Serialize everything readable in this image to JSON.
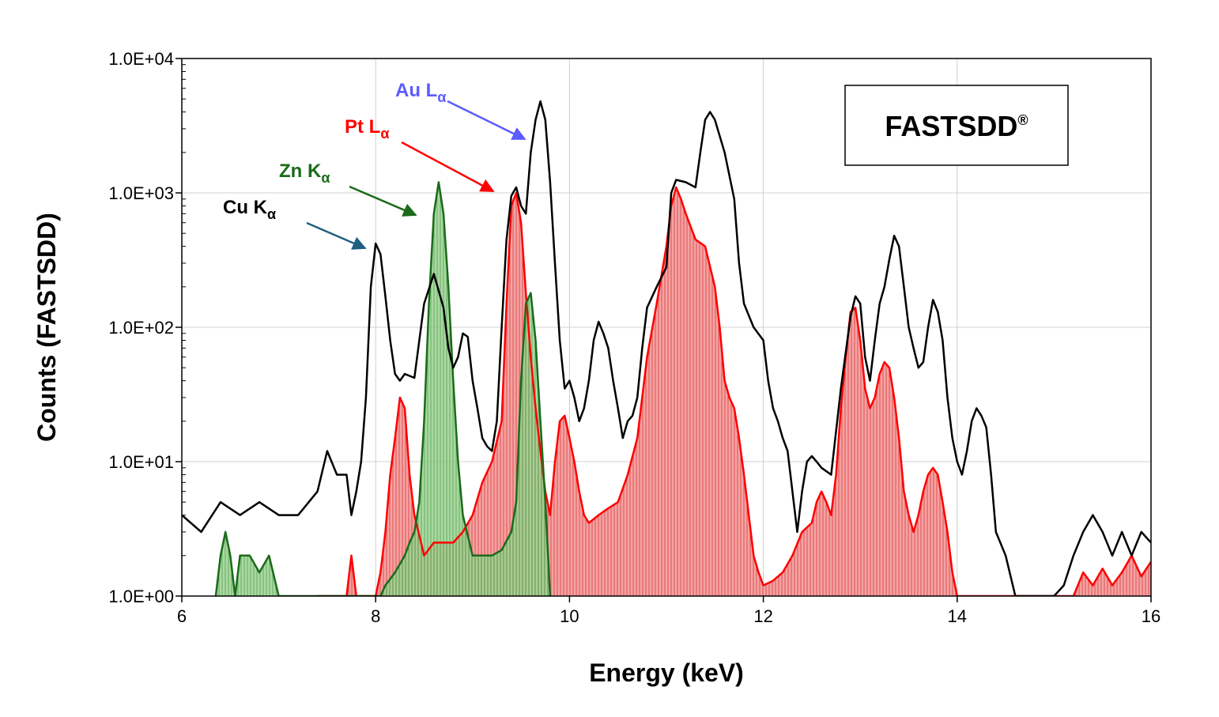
{
  "chart_data": {
    "type": "area",
    "title": "",
    "xlabel": "Energy (keV)",
    "ylabel": "Counts (FASTSDD)",
    "xlim": [
      6,
      16
    ],
    "ylim": [
      1,
      10000
    ],
    "yscale": "log",
    "grid": true,
    "x_ticks": [
      "6",
      "8",
      "10",
      "12",
      "14",
      "16"
    ],
    "y_ticks": [
      "1.0E+00",
      "1.0E+01",
      "1.0E+02",
      "1.0E+03",
      "1.0E+04"
    ],
    "badge": {
      "text": "FASTSDD",
      "mark": "®"
    },
    "series": [
      {
        "color": "#000000",
        "fill": "none",
        "points": [
          [
            6.0,
            4
          ],
          [
            6.2,
            3
          ],
          [
            6.4,
            5
          ],
          [
            6.6,
            4
          ],
          [
            6.8,
            5
          ],
          [
            7.0,
            4
          ],
          [
            7.2,
            4
          ],
          [
            7.4,
            6
          ],
          [
            7.5,
            12
          ],
          [
            7.6,
            8
          ],
          [
            7.7,
            8
          ],
          [
            7.75,
            4
          ],
          [
            7.8,
            6
          ],
          [
            7.85,
            10
          ],
          [
            7.9,
            30
          ],
          [
            7.95,
            200
          ],
          [
            8.0,
            420
          ],
          [
            8.05,
            350
          ],
          [
            8.1,
            170
          ],
          [
            8.15,
            80
          ],
          [
            8.2,
            45
          ],
          [
            8.25,
            40
          ],
          [
            8.3,
            45
          ],
          [
            8.4,
            42
          ],
          [
            8.5,
            150
          ],
          [
            8.6,
            250
          ],
          [
            8.7,
            140
          ],
          [
            8.75,
            70
          ],
          [
            8.8,
            50
          ],
          [
            8.85,
            60
          ],
          [
            8.9,
            90
          ],
          [
            8.95,
            85
          ],
          [
            9.0,
            40
          ],
          [
            9.05,
            25
          ],
          [
            9.1,
            15
          ],
          [
            9.15,
            13
          ],
          [
            9.2,
            12
          ],
          [
            9.25,
            20
          ],
          [
            9.3,
            100
          ],
          [
            9.35,
            450
          ],
          [
            9.4,
            950
          ],
          [
            9.45,
            1100
          ],
          [
            9.5,
            800
          ],
          [
            9.55,
            700
          ],
          [
            9.6,
            2000
          ],
          [
            9.65,
            3500
          ],
          [
            9.7,
            4800
          ],
          [
            9.75,
            3500
          ],
          [
            9.8,
            1200
          ],
          [
            9.85,
            300
          ],
          [
            9.9,
            80
          ],
          [
            9.95,
            35
          ],
          [
            10.0,
            40
          ],
          [
            10.05,
            30
          ],
          [
            10.1,
            20
          ],
          [
            10.15,
            25
          ],
          [
            10.2,
            40
          ],
          [
            10.25,
            80
          ],
          [
            10.3,
            110
          ],
          [
            10.35,
            90
          ],
          [
            10.4,
            70
          ],
          [
            10.45,
            40
          ],
          [
            10.5,
            25
          ],
          [
            10.55,
            15
          ],
          [
            10.6,
            20
          ],
          [
            10.65,
            22
          ],
          [
            10.7,
            30
          ],
          [
            10.75,
            70
          ],
          [
            10.8,
            140
          ],
          [
            10.9,
            200
          ],
          [
            11.0,
            280
          ],
          [
            11.05,
            1000
          ],
          [
            11.1,
            1250
          ],
          [
            11.2,
            1200
          ],
          [
            11.3,
            1100
          ],
          [
            11.35,
            2000
          ],
          [
            11.4,
            3500
          ],
          [
            11.45,
            4000
          ],
          [
            11.5,
            3500
          ],
          [
            11.6,
            2000
          ],
          [
            11.7,
            900
          ],
          [
            11.75,
            300
          ],
          [
            11.8,
            150
          ],
          [
            11.9,
            100
          ],
          [
            12.0,
            80
          ],
          [
            12.05,
            40
          ],
          [
            12.1,
            25
          ],
          [
            12.15,
            20
          ],
          [
            12.2,
            15
          ],
          [
            12.25,
            12
          ],
          [
            12.3,
            6
          ],
          [
            12.35,
            3
          ],
          [
            12.4,
            6
          ],
          [
            12.45,
            10
          ],
          [
            12.5,
            11
          ],
          [
            12.55,
            10
          ],
          [
            12.6,
            9
          ],
          [
            12.7,
            8
          ],
          [
            12.8,
            35
          ],
          [
            12.9,
            120
          ],
          [
            12.95,
            170
          ],
          [
            13.0,
            150
          ],
          [
            13.05,
            60
          ],
          [
            13.1,
            40
          ],
          [
            13.15,
            80
          ],
          [
            13.2,
            150
          ],
          [
            13.25,
            200
          ],
          [
            13.3,
            320
          ],
          [
            13.35,
            480
          ],
          [
            13.4,
            400
          ],
          [
            13.45,
            200
          ],
          [
            13.5,
            100
          ],
          [
            13.55,
            70
          ],
          [
            13.6,
            50
          ],
          [
            13.65,
            55
          ],
          [
            13.7,
            100
          ],
          [
            13.75,
            160
          ],
          [
            13.8,
            130
          ],
          [
            13.85,
            80
          ],
          [
            13.9,
            30
          ],
          [
            13.95,
            15
          ],
          [
            14.0,
            10
          ],
          [
            14.05,
            8
          ],
          [
            14.1,
            12
          ],
          [
            14.15,
            20
          ],
          [
            14.2,
            25
          ],
          [
            14.25,
            22
          ],
          [
            14.3,
            18
          ],
          [
            14.35,
            8
          ],
          [
            14.4,
            3
          ],
          [
            14.5,
            2
          ],
          [
            14.6,
            1
          ],
          [
            14.7,
            1
          ],
          [
            14.8,
            1
          ],
          [
            15.0,
            1
          ],
          [
            15.1,
            1.2
          ],
          [
            15.2,
            2
          ],
          [
            15.3,
            3
          ],
          [
            15.4,
            4
          ],
          [
            15.5,
            3
          ],
          [
            15.6,
            2
          ],
          [
            15.7,
            3
          ],
          [
            15.8,
            2
          ],
          [
            15.9,
            3
          ],
          [
            16.0,
            2.5
          ]
        ]
      },
      {
        "color": "#ff0000",
        "fill": "#f08080",
        "points": [
          [
            7.4,
            1
          ],
          [
            7.7,
            1
          ],
          [
            7.75,
            2
          ],
          [
            7.8,
            1
          ],
          [
            7.85,
            1
          ],
          [
            7.9,
            1
          ],
          [
            8.0,
            1
          ],
          [
            8.05,
            1.5
          ],
          [
            8.1,
            3
          ],
          [
            8.15,
            8
          ],
          [
            8.2,
            15
          ],
          [
            8.25,
            30
          ],
          [
            8.3,
            25
          ],
          [
            8.35,
            8
          ],
          [
            8.4,
            4
          ],
          [
            8.5,
            2
          ],
          [
            8.6,
            2.5
          ],
          [
            8.7,
            2.5
          ],
          [
            8.8,
            2.5
          ],
          [
            8.9,
            3
          ],
          [
            9.0,
            4
          ],
          [
            9.1,
            7
          ],
          [
            9.2,
            10
          ],
          [
            9.3,
            20
          ],
          [
            9.35,
            150
          ],
          [
            9.4,
            800
          ],
          [
            9.45,
            1000
          ],
          [
            9.5,
            600
          ],
          [
            9.55,
            180
          ],
          [
            9.6,
            60
          ],
          [
            9.65,
            25
          ],
          [
            9.7,
            12
          ],
          [
            9.75,
            6
          ],
          [
            9.8,
            4
          ],
          [
            9.85,
            10
          ],
          [
            9.9,
            20
          ],
          [
            9.95,
            22
          ],
          [
            10.0,
            15
          ],
          [
            10.05,
            10
          ],
          [
            10.1,
            6
          ],
          [
            10.15,
            4
          ],
          [
            10.2,
            3.5
          ],
          [
            10.3,
            4
          ],
          [
            10.4,
            4.5
          ],
          [
            10.5,
            5
          ],
          [
            10.6,
            8
          ],
          [
            10.7,
            15
          ],
          [
            10.8,
            60
          ],
          [
            10.9,
            150
          ],
          [
            11.0,
            400
          ],
          [
            11.05,
            800
          ],
          [
            11.1,
            1100
          ],
          [
            11.15,
            900
          ],
          [
            11.2,
            700
          ],
          [
            11.3,
            450
          ],
          [
            11.4,
            400
          ],
          [
            11.5,
            200
          ],
          [
            11.55,
            100
          ],
          [
            11.6,
            40
          ],
          [
            11.65,
            30
          ],
          [
            11.7,
            25
          ],
          [
            11.75,
            15
          ],
          [
            11.8,
            8
          ],
          [
            11.85,
            4
          ],
          [
            11.9,
            2
          ],
          [
            11.95,
            1.5
          ],
          [
            12.0,
            1.2
          ],
          [
            12.1,
            1.3
          ],
          [
            12.2,
            1.5
          ],
          [
            12.3,
            2
          ],
          [
            12.4,
            3
          ],
          [
            12.5,
            3.5
          ],
          [
            12.55,
            5
          ],
          [
            12.6,
            6
          ],
          [
            12.65,
            5
          ],
          [
            12.7,
            4
          ],
          [
            12.75,
            8
          ],
          [
            12.8,
            25
          ],
          [
            12.85,
            60
          ],
          [
            12.9,
            130
          ],
          [
            12.95,
            140
          ],
          [
            13.0,
            80
          ],
          [
            13.05,
            35
          ],
          [
            13.1,
            25
          ],
          [
            13.15,
            30
          ],
          [
            13.2,
            45
          ],
          [
            13.25,
            55
          ],
          [
            13.3,
            50
          ],
          [
            13.35,
            30
          ],
          [
            13.4,
            15
          ],
          [
            13.45,
            6
          ],
          [
            13.5,
            4
          ],
          [
            13.55,
            3
          ],
          [
            13.6,
            4
          ],
          [
            13.65,
            6
          ],
          [
            13.7,
            8
          ],
          [
            13.75,
            9
          ],
          [
            13.8,
            8
          ],
          [
            13.85,
            5
          ],
          [
            13.9,
            3
          ],
          [
            13.95,
            1.5
          ],
          [
            14.0,
            1
          ],
          [
            15.2,
            1
          ],
          [
            15.3,
            1.5
          ],
          [
            15.4,
            1.2
          ],
          [
            15.5,
            1.6
          ],
          [
            15.6,
            1.2
          ],
          [
            15.7,
            1.5
          ],
          [
            15.8,
            2
          ],
          [
            15.9,
            1.4
          ],
          [
            16.0,
            1.8
          ]
        ]
      },
      {
        "color": "#1a6b1a",
        "fill": "#7fc77f",
        "points": [
          [
            6.35,
            1
          ],
          [
            6.4,
            2
          ],
          [
            6.45,
            3
          ],
          [
            6.5,
            2
          ],
          [
            6.55,
            1
          ],
          [
            6.6,
            2
          ],
          [
            6.7,
            2
          ],
          [
            6.8,
            1.5
          ],
          [
            6.9,
            2
          ],
          [
            7.0,
            1
          ],
          [
            8.0,
            1
          ],
          [
            8.05,
            1
          ],
          [
            8.1,
            1.2
          ],
          [
            8.2,
            1.5
          ],
          [
            8.3,
            2
          ],
          [
            8.35,
            2.5
          ],
          [
            8.4,
            3
          ],
          [
            8.45,
            5
          ],
          [
            8.5,
            20
          ],
          [
            8.55,
            150
          ],
          [
            8.6,
            700
          ],
          [
            8.65,
            1200
          ],
          [
            8.7,
            700
          ],
          [
            8.75,
            200
          ],
          [
            8.8,
            40
          ],
          [
            8.85,
            10
          ],
          [
            8.9,
            4
          ],
          [
            9.0,
            2
          ],
          [
            9.1,
            2
          ],
          [
            9.2,
            2
          ],
          [
            9.3,
            2.2
          ],
          [
            9.4,
            3
          ],
          [
            9.45,
            5
          ],
          [
            9.5,
            40
          ],
          [
            9.55,
            150
          ],
          [
            9.6,
            180
          ],
          [
            9.65,
            80
          ],
          [
            9.7,
            20
          ],
          [
            9.75,
            5
          ],
          [
            9.8,
            1
          ]
        ]
      }
    ],
    "annotations": [
      {
        "label": "Cu",
        "sub": "α",
        "letter": "K",
        "color": "#000000",
        "arrow_color": "#1f5f7f",
        "peak_x": 8.0
      },
      {
        "label": "Zn",
        "sub": "α",
        "letter": "K",
        "color": "#1a6b1a",
        "arrow_color": "#1a6b1a",
        "peak_x": 8.65
      },
      {
        "label": "Pt",
        "sub": "α",
        "letter": "L",
        "color": "#ff0000",
        "arrow_color": "#ff0000",
        "peak_x": 9.45
      },
      {
        "label": "Au",
        "sub": "α",
        "letter": "L",
        "color": "#5b5bff",
        "arrow_color": "#5b5bff",
        "peak_x": 9.7
      }
    ]
  }
}
